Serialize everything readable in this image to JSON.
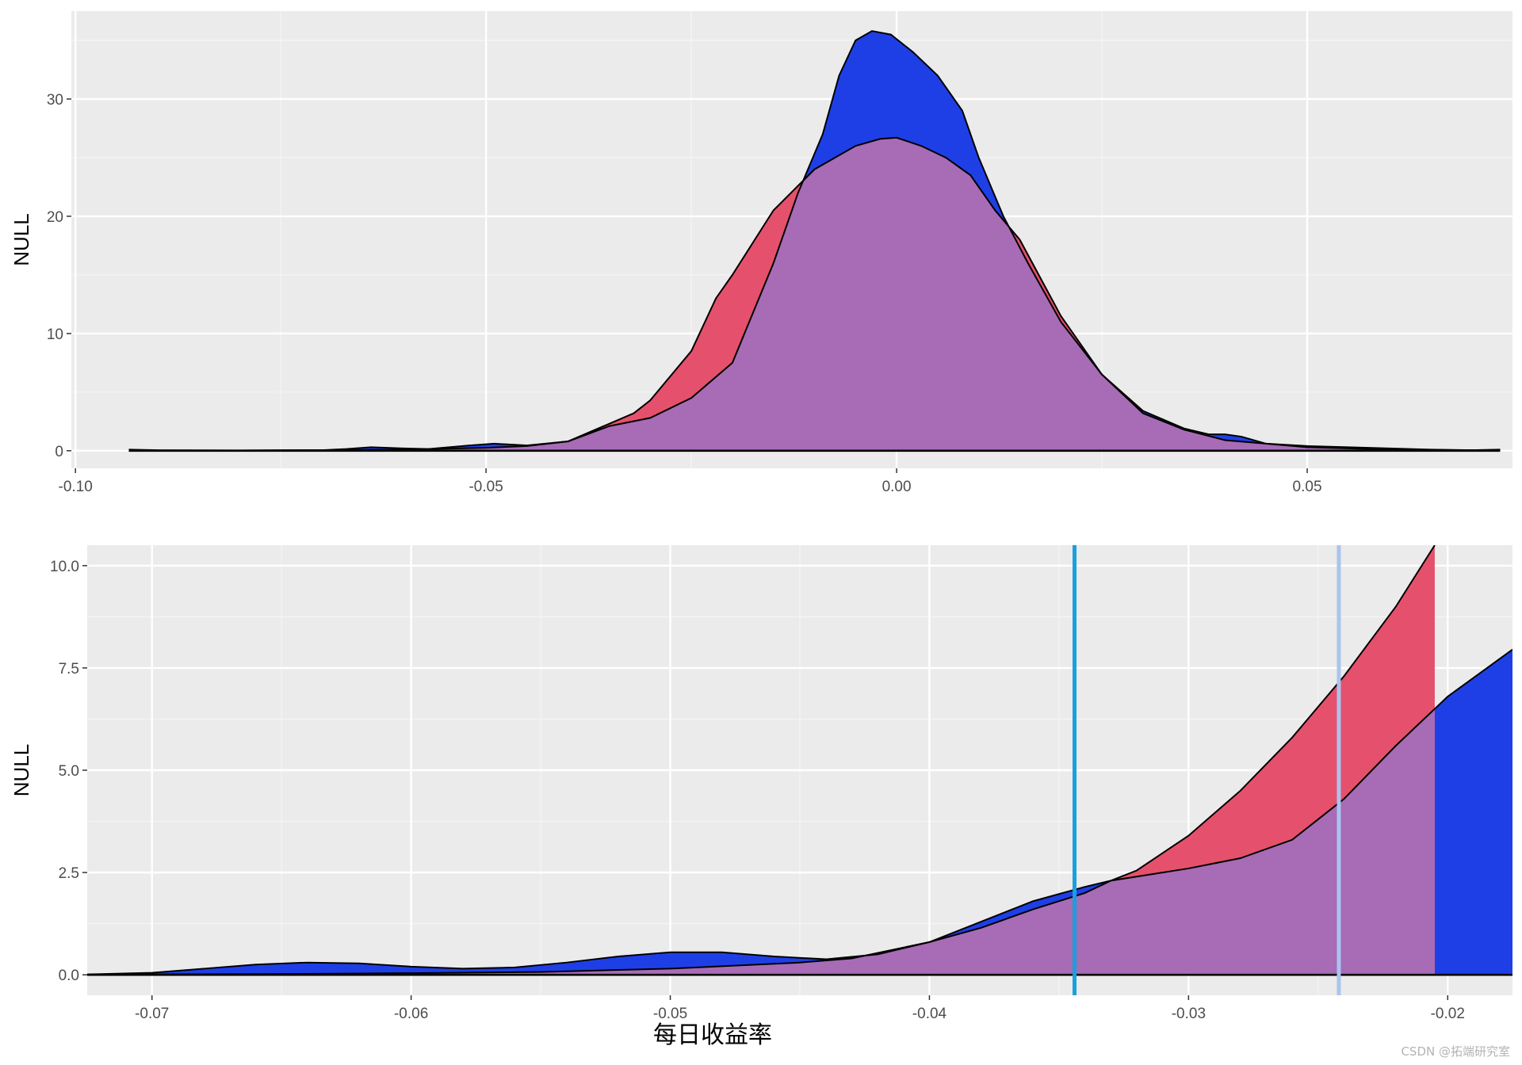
{
  "watermark": "CSDN @拓端研究室",
  "colors": {
    "panel_bg": "#ebebeb",
    "grid_major": "#ffffff",
    "grid_minor": "#f5f5f5",
    "dist_blue": "#1f3fe6",
    "dist_red": "#e5516c",
    "overlap_purple": "#a86bb6",
    "outline": "#000000",
    "vline_dark": "#1aa0dc",
    "vline_light": "#a9c4ef"
  },
  "chart_data": [
    {
      "type": "area",
      "subtype": "density",
      "ylabel": "NULL",
      "xlabel": "",
      "xlim": [
        -0.1005,
        0.075
      ],
      "ylim": [
        -1.5,
        37.5
      ],
      "xticks": [
        -0.1,
        -0.05,
        0.0,
        0.05
      ],
      "xtick_labels": [
        "-0.10",
        "-0.05",
        "0.00",
        "0.05"
      ],
      "yticks": [
        0,
        10,
        20,
        30
      ],
      "ytick_labels": [
        "0",
        "10",
        "20",
        "30"
      ],
      "grid": true,
      "series": [
        {
          "color": "#1f3fe6",
          "x": [
            -0.0935,
            -0.09,
            -0.08,
            -0.07,
            -0.067,
            -0.064,
            -0.06,
            -0.057,
            -0.052,
            -0.049,
            -0.045,
            -0.04,
            -0.035,
            -0.03,
            -0.025,
            -0.02,
            -0.015,
            -0.012,
            -0.009,
            -0.007,
            -0.005,
            -0.003,
            -0.0007,
            0.002,
            0.005,
            0.008,
            0.01,
            0.013,
            0.016,
            0.02,
            0.025,
            0.03,
            0.035,
            0.038,
            0.04,
            0.042,
            0.045,
            0.05,
            0.055,
            0.06,
            0.065,
            0.07,
            0.0735
          ],
          "y": [
            0.1,
            0.05,
            0.03,
            0.05,
            0.15,
            0.3,
            0.2,
            0.15,
            0.45,
            0.6,
            0.45,
            0.8,
            2.1,
            2.8,
            4.5,
            7.5,
            16,
            22,
            27,
            32,
            35,
            35.8,
            35.5,
            34,
            32,
            29,
            25,
            20,
            16,
            11,
            6.5,
            3.4,
            1.9,
            1.4,
            1.4,
            1.2,
            0.6,
            0.3,
            0.2,
            0.1,
            0.07,
            0.05,
            0.1
          ]
        },
        {
          "color": "#e5516c",
          "x": [
            -0.0935,
            -0.08,
            -0.07,
            -0.06,
            -0.05,
            -0.045,
            -0.04,
            -0.035,
            -0.032,
            -0.03,
            -0.025,
            -0.022,
            -0.02,
            -0.015,
            -0.01,
            -0.005,
            -0.002,
            0.0,
            0.003,
            0.006,
            0.009,
            0.012,
            0.015,
            0.02,
            0.025,
            0.03,
            0.035,
            0.04,
            0.045,
            0.05,
            0.055,
            0.06,
            0.065,
            0.07,
            0.0735
          ],
          "y": [
            0.02,
            0.02,
            0.05,
            0.1,
            0.25,
            0.4,
            0.8,
            2.3,
            3.2,
            4.3,
            8.5,
            13,
            15,
            20.5,
            24,
            26,
            26.6,
            26.7,
            26,
            25,
            23.5,
            20.5,
            18,
            11.5,
            6.5,
            3.2,
            1.8,
            0.9,
            0.6,
            0.4,
            0.3,
            0.2,
            0.1,
            0.05,
            0.05
          ]
        }
      ]
    },
    {
      "type": "area",
      "subtype": "density",
      "ylabel": "NULL",
      "xlabel": "每日收益率",
      "xlim": [
        -0.0725,
        -0.0175
      ],
      "ylim": [
        -0.5,
        10.5
      ],
      "xticks": [
        -0.07,
        -0.06,
        -0.05,
        -0.04,
        -0.03,
        -0.02
      ],
      "xtick_labels": [
        "-0.07",
        "-0.06",
        "-0.05",
        "-0.04",
        "-0.03",
        "-0.02"
      ],
      "yticks": [
        0,
        2.5,
        5,
        7.5,
        10
      ],
      "ytick_labels": [
        "0.0",
        "2.5",
        "5.0",
        "7.5",
        "10.0"
      ],
      "grid": true,
      "vlines": [
        {
          "x": -0.0344,
          "color": "#1aa0dc"
        },
        {
          "x": -0.0242,
          "color": "#a9c4ef"
        }
      ],
      "series": [
        {
          "color": "#1f3fe6",
          "x": [
            -0.0725,
            -0.07,
            -0.068,
            -0.066,
            -0.064,
            -0.062,
            -0.06,
            -0.058,
            -0.056,
            -0.054,
            -0.052,
            -0.05,
            -0.048,
            -0.046,
            -0.044,
            -0.042,
            -0.04,
            -0.038,
            -0.036,
            -0.034,
            -0.033,
            -0.032,
            -0.03,
            -0.028,
            -0.026,
            -0.024,
            -0.022,
            -0.02,
            -0.0175
          ],
          "y": [
            0.01,
            0.05,
            0.15,
            0.25,
            0.3,
            0.28,
            0.2,
            0.15,
            0.18,
            0.3,
            0.45,
            0.55,
            0.55,
            0.45,
            0.38,
            0.5,
            0.8,
            1.3,
            1.8,
            2.15,
            2.3,
            2.4,
            2.6,
            2.85,
            3.3,
            4.3,
            5.6,
            6.8,
            7.95
          ]
        },
        {
          "color": "#e5516c",
          "x": [
            -0.0725,
            -0.07,
            -0.065,
            -0.06,
            -0.055,
            -0.05,
            -0.045,
            -0.043,
            -0.04,
            -0.038,
            -0.036,
            -0.034,
            -0.033,
            -0.032,
            -0.03,
            -0.028,
            -0.026,
            -0.024,
            -0.022,
            -0.0205
          ],
          "y": [
            0.0,
            0.01,
            0.02,
            0.04,
            0.07,
            0.15,
            0.3,
            0.4,
            0.8,
            1.15,
            1.6,
            2.0,
            2.3,
            2.55,
            3.4,
            4.5,
            5.8,
            7.3,
            9.0,
            10.5
          ]
        }
      ]
    }
  ]
}
